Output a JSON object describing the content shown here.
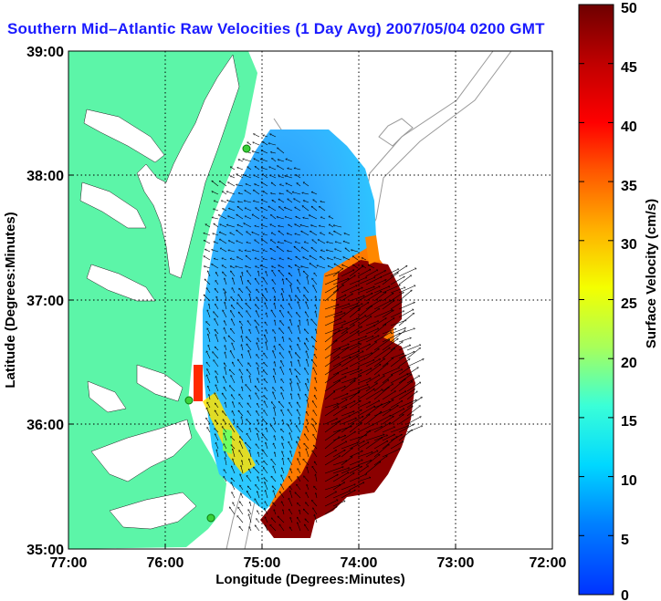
{
  "map": {
    "title": "Southern Mid–Atlantic Raw Velocities (1 Day Avg) 2007/05/04 0200 GMT",
    "x_axis": {
      "label": "Longitude (Degrees:Minutes)",
      "ticks": [
        "77:00",
        "76:00",
        "75:00",
        "74:00",
        "73:00",
        "72:00"
      ]
    },
    "y_axis": {
      "label": "Latitude (Degrees:Minutes)",
      "ticks": [
        "39:00",
        "38:00",
        "37:00",
        "36:00",
        "35:00"
      ]
    },
    "grid": true,
    "colorbar": {
      "label": "Surface Velocity (cm/s)",
      "ticks": [
        "0",
        "5",
        "10",
        "15",
        "20",
        "25",
        "30",
        "35",
        "40",
        "45",
        "50"
      ],
      "min": 0,
      "max": 50
    },
    "colors": {
      "land": "#5cf5a8",
      "water": "#ffffff",
      "bathymetry": "#9a9a9a",
      "title": "#1a1aff",
      "station": "#3ad13a"
    },
    "stations": 3
  }
}
